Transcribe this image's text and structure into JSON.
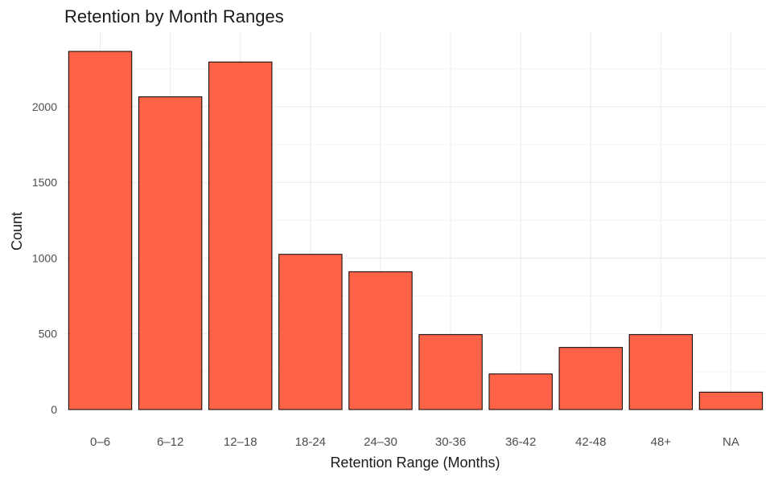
{
  "chart_data": {
    "type": "bar",
    "title": "Retention by Month Ranges",
    "xlabel": "Retention Range (Months)",
    "ylabel": "Count",
    "categories": [
      "0–6",
      "6–12",
      "12–18",
      "18-24",
      "24–30",
      "30-36",
      "36-42",
      "42-48",
      "48+",
      "NA"
    ],
    "values": [
      2365,
      2065,
      2295,
      1025,
      910,
      495,
      235,
      410,
      495,
      115
    ],
    "ylim": [
      0,
      2500
    ],
    "yticks": [
      0,
      500,
      1000,
      1500,
      2000
    ],
    "grid": true,
    "legend": "none",
    "colors": {
      "bar_fill": "#FF6347",
      "bar_stroke": "#000000",
      "grid_major": "#ebebeb",
      "grid_minor": "#f5f5f5"
    }
  }
}
